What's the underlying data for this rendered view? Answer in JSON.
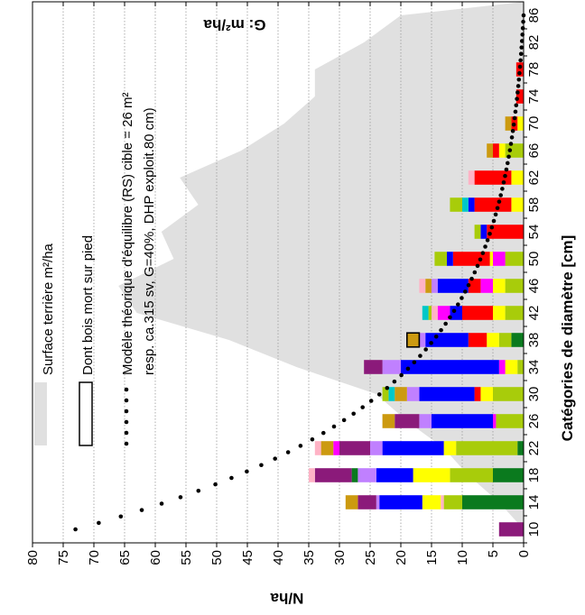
{
  "chart_data": {
    "type": "bar",
    "orientation": "rotated-90-clockwise",
    "title": "",
    "xlabel": "Catégories de diamètre [cm]",
    "ylabel": "N/ha",
    "y2label": "G: m²/ha",
    "ylim": [
      0,
      80
    ],
    "yticks": [
      0,
      5,
      10,
      15,
      20,
      25,
      30,
      35,
      40,
      45,
      50,
      55,
      60,
      65,
      70,
      75,
      80
    ],
    "grid": true,
    "categories": [
      "10",
      "14",
      "18",
      "22",
      "26",
      "30",
      "34",
      "38",
      "42",
      "46",
      "50",
      "54",
      "58",
      "62",
      "66",
      "70",
      "74",
      "78",
      "82",
      "86"
    ],
    "stack_colors": [
      "#0a7a1e",
      "#a8cc0a",
      "#ffff00",
      "#ff0000",
      "#ff00ff",
      "#0000ff",
      "#ffb3c6",
      "#c080ff",
      "#8b1a7a",
      "#cc9a10",
      "#00c8c8"
    ],
    "stacks": [
      [
        {
          "c": 8,
          "v": 4
        }
      ],
      [
        {
          "c": 0,
          "v": 10
        },
        {
          "c": 1,
          "v": 3
        },
        {
          "c": 6,
          "v": 0.5
        },
        {
          "c": 2,
          "v": 3
        },
        {
          "c": 5,
          "v": 7
        },
        {
          "c": 7,
          "v": 0.5
        },
        {
          "c": 8,
          "v": 3
        },
        {
          "c": 9,
          "v": 2
        }
      ],
      [
        {
          "c": 0,
          "v": 5
        },
        {
          "c": 1,
          "v": 7
        },
        {
          "c": 2,
          "v": 6
        },
        {
          "c": 5,
          "v": 6
        },
        {
          "c": 7,
          "v": 3
        },
        {
          "c": 0,
          "v": 1
        },
        {
          "c": 8,
          "v": 6
        },
        {
          "c": 6,
          "v": 1
        }
      ],
      [
        {
          "c": 0,
          "v": 1
        },
        {
          "c": 1,
          "v": 10
        },
        {
          "c": 2,
          "v": 2
        },
        {
          "c": 5,
          "v": 10
        },
        {
          "c": 7,
          "v": 2
        },
        {
          "c": 8,
          "v": 5
        },
        {
          "c": 4,
          "v": 1
        },
        {
          "c": 9,
          "v": 2
        },
        {
          "c": 6,
          "v": 1
        }
      ],
      [
        {
          "c": 1,
          "v": 4.5
        },
        {
          "c": 4,
          "v": 0.5
        },
        {
          "c": 5,
          "v": 10
        },
        {
          "c": 7,
          "v": 2
        },
        {
          "c": 8,
          "v": 4
        },
        {
          "c": 9,
          "v": 2
        }
      ],
      [
        {
          "c": 1,
          "v": 5
        },
        {
          "c": 2,
          "v": 2
        },
        {
          "c": 3,
          "v": 1
        },
        {
          "c": 5,
          "v": 9
        },
        {
          "c": 7,
          "v": 2
        },
        {
          "c": 9,
          "v": 2
        },
        {
          "c": 10,
          "v": 1
        },
        {
          "c": 1,
          "v": 1
        }
      ],
      [
        {
          "c": 1,
          "v": 1
        },
        {
          "c": 2,
          "v": 2
        },
        {
          "c": 4,
          "v": 1
        },
        {
          "c": 5,
          "v": 16
        },
        {
          "c": 7,
          "v": 3
        },
        {
          "c": 8,
          "v": 3
        }
      ],
      [
        {
          "c": 0,
          "v": 2
        },
        {
          "c": 1,
          "v": 2
        },
        {
          "c": 2,
          "v": 2
        },
        {
          "c": 3,
          "v": 3
        },
        {
          "c": 5,
          "v": 7
        },
        {
          "c": 7,
          "v": 1
        },
        {
          "c": 9,
          "v": 2
        }
      ],
      [
        {
          "c": 1,
          "v": 3
        },
        {
          "c": 2,
          "v": 2
        },
        {
          "c": 3,
          "v": 5
        },
        {
          "c": 5,
          "v": 2
        },
        {
          "c": 4,
          "v": 2
        },
        {
          "c": 6,
          "v": 1
        },
        {
          "c": 1,
          "v": 0.5
        },
        {
          "c": 10,
          "v": 1
        }
      ],
      [
        {
          "c": 1,
          "v": 3
        },
        {
          "c": 2,
          "v": 2
        },
        {
          "c": 4,
          "v": 2
        },
        {
          "c": 3,
          "v": 2
        },
        {
          "c": 5,
          "v": 5
        },
        {
          "c": 7,
          "v": 1
        },
        {
          "c": 9,
          "v": 1
        },
        {
          "c": 6,
          "v": 1
        }
      ],
      [
        {
          "c": 1,
          "v": 3
        },
        {
          "c": 4,
          "v": 2
        },
        {
          "c": 2,
          "v": 0.5
        },
        {
          "c": 3,
          "v": 6
        },
        {
          "c": 5,
          "v": 1
        },
        {
          "c": 1,
          "v": 2
        }
      ],
      [
        {
          "c": 3,
          "v": 6
        },
        {
          "c": 5,
          "v": 1
        },
        {
          "c": 1,
          "v": 1
        }
      ],
      [
        {
          "c": 2,
          "v": 2
        },
        {
          "c": 3,
          "v": 6
        },
        {
          "c": 5,
          "v": 1
        },
        {
          "c": 10,
          "v": 1
        },
        {
          "c": 1,
          "v": 2
        }
      ],
      [
        {
          "c": 2,
          "v": 2
        },
        {
          "c": 3,
          "v": 6
        },
        {
          "c": 6,
          "v": 1
        }
      ],
      [
        {
          "c": 1,
          "v": 3
        },
        {
          "c": 2,
          "v": 1
        },
        {
          "c": 3,
          "v": 1
        },
        {
          "c": 9,
          "v": 1
        }
      ],
      [
        {
          "c": 2,
          "v": 1
        },
        {
          "c": 3,
          "v": 1
        },
        {
          "c": 9,
          "v": 1
        }
      ],
      [
        {
          "c": 3,
          "v": 1.2
        }
      ],
      [
        {
          "c": 3,
          "v": 1.2
        }
      ],
      [],
      []
    ],
    "dead_standing": [
      {
        "category": "38",
        "from": 17,
        "to": 19
      }
    ],
    "area_series": {
      "name": "Surface terrière m²/ha",
      "color": "#e0e0e0",
      "values": [
        0,
        4,
        9,
        13,
        19,
        24,
        37,
        48,
        63,
        66,
        57,
        59,
        53,
        56,
        46,
        39,
        34,
        34,
        26,
        20
      ]
    },
    "model_series": {
      "name": "Modèle théorique d'équilibre (RS) cible = 26 m²",
      "name_line2": "resp. ca.315 sv, G=40%, DHP exploit.80 cm)",
      "x_from": 10,
      "x_to": 86,
      "y_from": 73,
      "y_to": 0
    },
    "legend": {
      "placement": "top-left",
      "area": "Surface terrière m²/ha",
      "dead": "Dont bois mort sur pied",
      "model_line1": "Modèle théorique d'équilibre (RS) cible = 26 m²",
      "model_line2": "resp. ca.315 sv, G=40%, DHP exploit.80 cm)"
    }
  }
}
